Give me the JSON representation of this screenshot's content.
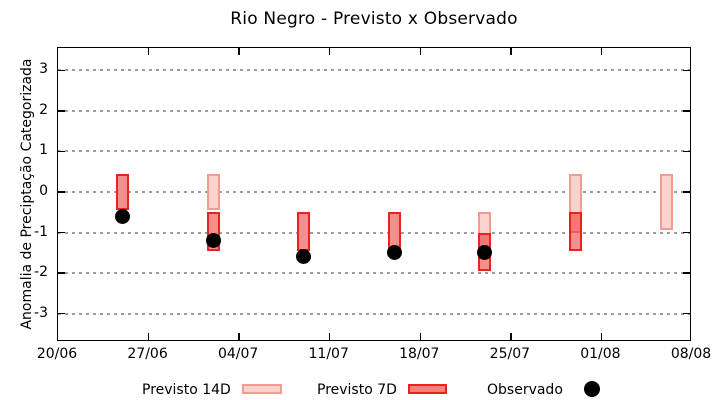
{
  "colors": {
    "previsto_14d_fill": "rgba(236,88,74,0.27)",
    "previsto_14d_fill_solid": "#fad2cc",
    "previsto_14d_border": "#f29b90",
    "previsto_7d_fill": "rgba(233,40,35,0.52)",
    "previsto_7d_fill_solid": "#f5827e",
    "previsto_7d_border": "#e52520",
    "observado": "#000000",
    "grid": "#9e9e9e"
  },
  "chart_data": {
    "type": "bar",
    "title": "Rio Negro - Previsto x Observado",
    "xlabel": "",
    "ylabel": "Anomalia de Preciptação Categorizada",
    "ylim": [
      -3.7,
      3.55
    ],
    "grid": true,
    "legend_position": "bottom",
    "y_ticks": [
      3,
      2,
      1,
      0,
      -1,
      -2,
      -3
    ],
    "x_tick_labels": [
      "20/06",
      "27/06",
      "04/07",
      "11/07",
      "18/07",
      "25/07",
      "01/08",
      "08/08"
    ],
    "x_tick_days": [
      0,
      7,
      14,
      21,
      28,
      35,
      42,
      49
    ],
    "x_total_days": 49,
    "bar_width_days": 1,
    "series": [
      {
        "name": "Previsto 14D",
        "type": "interval-bar",
        "points": [
          {
            "date": "02/07",
            "day": 12,
            "low": -0.45,
            "high": 0.45
          },
          {
            "date": "23/07",
            "day": 33,
            "low": -1.6,
            "high": -0.5
          },
          {
            "date": "30/07",
            "day": 40,
            "low": -1.0,
            "high": 0.45
          },
          {
            "date": "06/08",
            "day": 47,
            "low": -0.95,
            "high": 0.45
          }
        ]
      },
      {
        "name": "Previsto 7D",
        "type": "interval-bar",
        "points": [
          {
            "date": "25/06",
            "day": 5,
            "low": -0.45,
            "high": 0.45
          },
          {
            "date": "02/07",
            "day": 12,
            "low": -1.45,
            "high": -0.5
          },
          {
            "date": "09/07",
            "day": 19,
            "low": -1.45,
            "high": -0.5
          },
          {
            "date": "16/07",
            "day": 26,
            "low": -1.45,
            "high": -0.5
          },
          {
            "date": "23/07",
            "day": 33,
            "low": -1.95,
            "high": -1.0
          },
          {
            "date": "30/07",
            "day": 40,
            "low": -1.45,
            "high": -0.5
          }
        ]
      },
      {
        "name": "Observado",
        "type": "scatter",
        "points": [
          {
            "date": "25/06",
            "day": 5,
            "value": -0.6
          },
          {
            "date": "02/07",
            "day": 12,
            "value": -1.2
          },
          {
            "date": "09/07",
            "day": 19,
            "value": -1.6
          },
          {
            "date": "16/07",
            "day": 26,
            "value": -1.5
          },
          {
            "date": "23/07",
            "day": 33,
            "value": -1.5
          }
        ]
      }
    ]
  }
}
